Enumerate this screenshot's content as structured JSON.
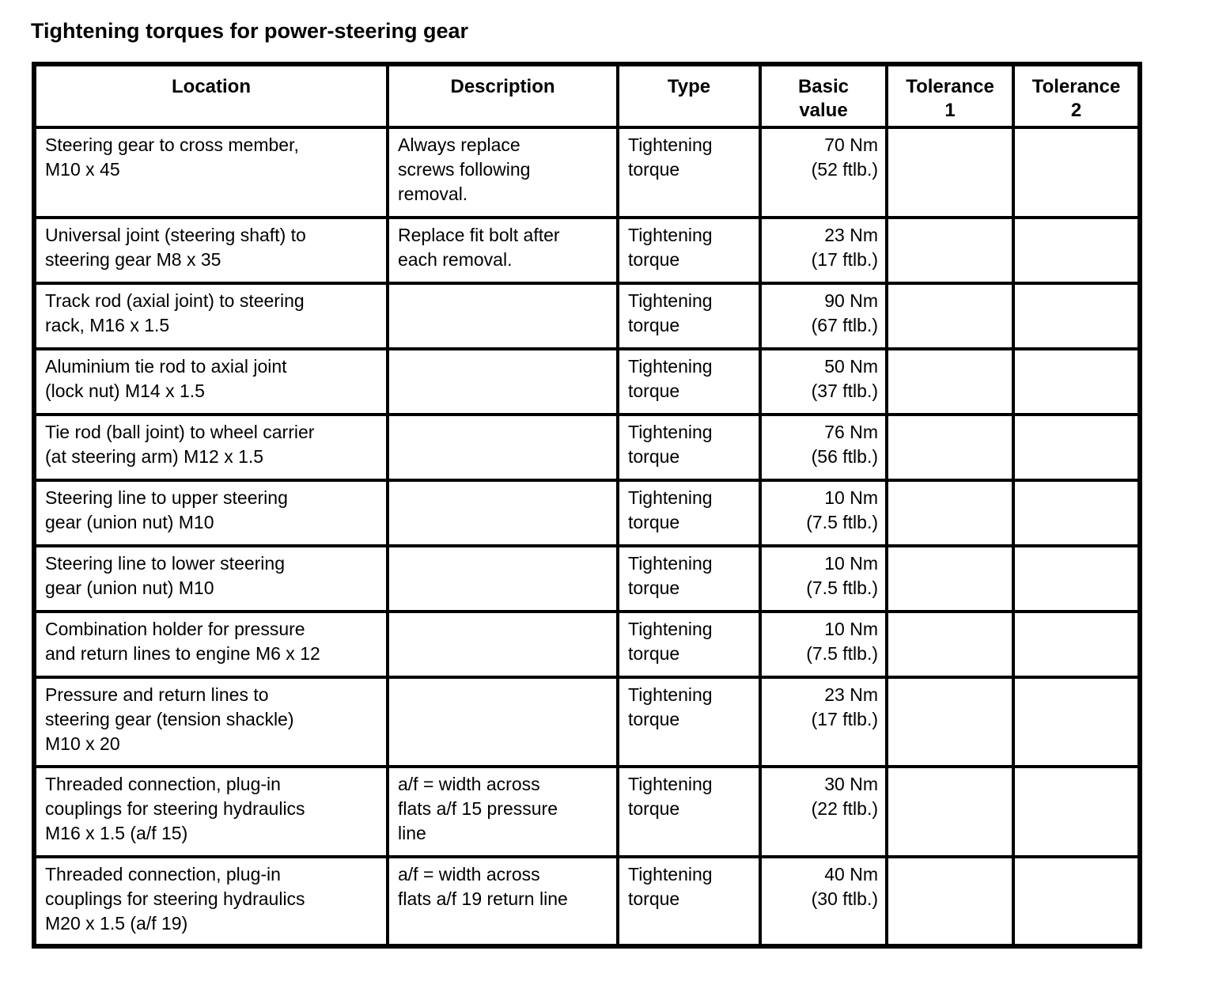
{
  "page": {
    "title": "Tightening torques for power-steering gear"
  },
  "table": {
    "columns": [
      {
        "id": "location",
        "label": "Location"
      },
      {
        "id": "description",
        "label": "Description"
      },
      {
        "id": "type",
        "label": "Type"
      },
      {
        "id": "basic_value",
        "label": "Basic\nvalue"
      },
      {
        "id": "tolerance_1",
        "label": "Tolerance\n1"
      },
      {
        "id": "tolerance_2",
        "label": "Tolerance\n2"
      }
    ],
    "rows": [
      {
        "location": "Steering gear to cross member,\nM10 x 45",
        "description": "Always replace\nscrews following\nremoval.",
        "type": "Tightening\ntorque",
        "basic_value": "70 Nm\n(52 ftlb.)",
        "tolerance_1": "",
        "tolerance_2": ""
      },
      {
        "location": "Universal joint (steering shaft) to\nsteering gear M8 x 35",
        "description": "Replace fit bolt after\neach removal.",
        "type": "Tightening\ntorque",
        "basic_value": "23 Nm\n(17 ftlb.)",
        "tolerance_1": "",
        "tolerance_2": ""
      },
      {
        "location": "Track rod (axial joint) to steering\nrack, M16 x 1.5",
        "description": "",
        "type": "Tightening\ntorque",
        "basic_value": "90 Nm\n(67 ftlb.)",
        "tolerance_1": "",
        "tolerance_2": ""
      },
      {
        "location": "Aluminium tie rod to axial joint\n(lock nut) M14 x 1.5",
        "description": "",
        "type": "Tightening\ntorque",
        "basic_value": "50 Nm\n(37 ftlb.)",
        "tolerance_1": "",
        "tolerance_2": ""
      },
      {
        "location": "Tie rod (ball joint) to wheel carrier\n(at steering arm) M12 x 1.5",
        "description": "",
        "type": "Tightening\ntorque",
        "basic_value": "76 Nm\n(56 ftlb.)",
        "tolerance_1": "",
        "tolerance_2": ""
      },
      {
        "location": "Steering line to upper steering\ngear (union nut) M10",
        "description": "",
        "type": "Tightening\ntorque",
        "basic_value": "10 Nm\n(7.5 ftlb.)",
        "tolerance_1": "",
        "tolerance_2": ""
      },
      {
        "location": "Steering line to lower steering\ngear (union nut) M10",
        "description": "",
        "type": "Tightening\ntorque",
        "basic_value": "10 Nm\n(7.5 ftlb.)",
        "tolerance_1": "",
        "tolerance_2": ""
      },
      {
        "location": "Combination holder for pressure\nand return lines to engine M6 x 12",
        "description": "",
        "type": "Tightening\ntorque",
        "basic_value": "10 Nm\n(7.5 ftlb.)",
        "tolerance_1": "",
        "tolerance_2": ""
      },
      {
        "location": "Pressure and return lines to\nsteering gear (tension shackle)\nM10 x 20",
        "description": "",
        "type": "Tightening\ntorque",
        "basic_value": "23 Nm\n(17 ftlb.)",
        "tolerance_1": "",
        "tolerance_2": ""
      },
      {
        "location": "Threaded connection, plug-in\ncouplings for steering hydraulics\nM16 x 1.5 (a/f 15)",
        "description": "a/f = width across\nflats a/f 15 pressure\nline",
        "type": "Tightening\ntorque",
        "basic_value": "30 Nm\n(22 ftlb.)",
        "tolerance_1": "",
        "tolerance_2": ""
      },
      {
        "location": "Threaded connection, plug-in\ncouplings for steering hydraulics\nM20 x 1.5 (a/f 19)",
        "description": "a/f = width across\nflats a/f 19 return line",
        "type": "Tightening\ntorque",
        "basic_value": "40 Nm\n(30 ftlb.)",
        "tolerance_1": "",
        "tolerance_2": ""
      }
    ]
  }
}
